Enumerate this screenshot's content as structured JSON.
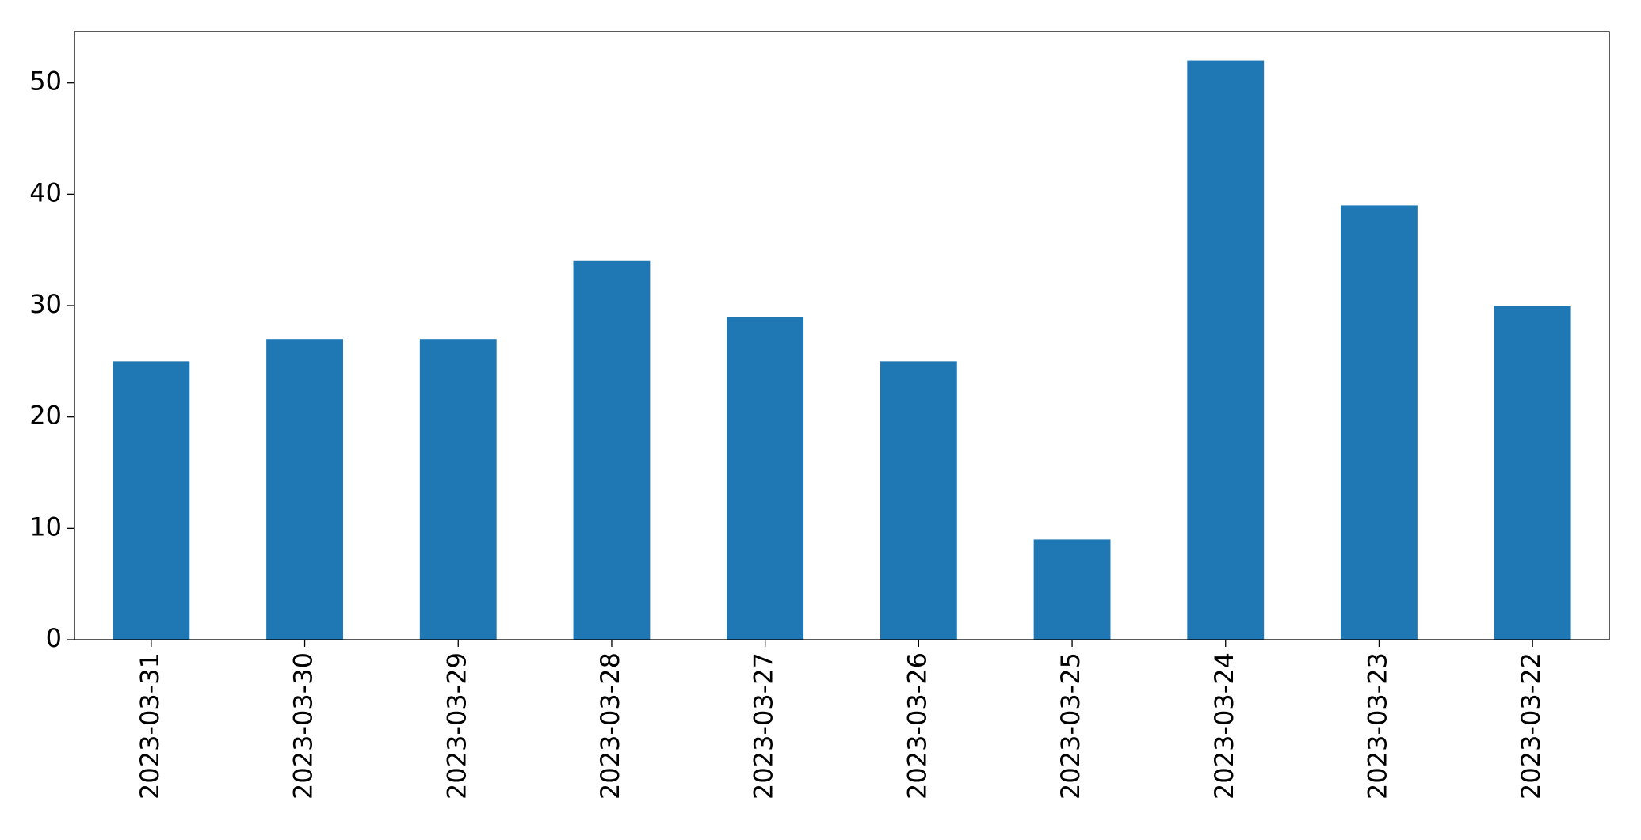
{
  "chart_data": {
    "type": "bar",
    "categories": [
      "2023-03-31",
      "2023-03-30",
      "2023-03-29",
      "2023-03-28",
      "2023-03-27",
      "2023-03-26",
      "2023-03-25",
      "2023-03-24",
      "2023-03-23",
      "2023-03-22"
    ],
    "values": [
      25,
      27,
      27,
      34,
      29,
      25,
      9,
      52,
      39,
      30
    ],
    "color": "#1f77b4",
    "ylim": [
      0,
      54.6
    ],
    "yticks": [
      0,
      10,
      20,
      30,
      40,
      50
    ],
    "grid": false
  }
}
